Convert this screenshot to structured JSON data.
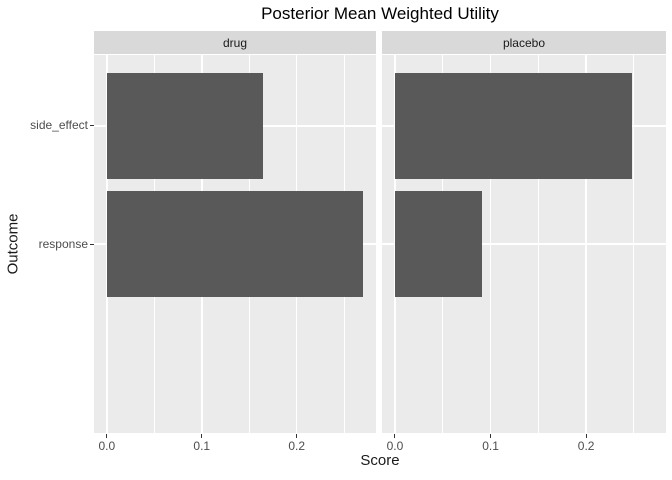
{
  "chart_data": {
    "type": "bar",
    "orientation": "horizontal",
    "title": "Posterior Mean Weighted Utility",
    "xlabel": "Score",
    "ylabel": "Outcome",
    "categories": [
      "side_effect",
      "response"
    ],
    "facets": [
      {
        "label": "drug",
        "values": [
          0.165,
          0.27
        ]
      },
      {
        "label": "placebo",
        "values": [
          0.248,
          0.091
        ]
      }
    ],
    "x_ticks": [
      0,
      0.1,
      0.2
    ],
    "x_tick_labels": [
      "0.0",
      "0.1",
      "0.2"
    ],
    "x_minor_ticks": [
      0.05,
      0.15,
      0.25
    ],
    "xlim": [
      -0.0135,
      0.2835
    ],
    "grid": true,
    "legend": "none",
    "colors": {
      "bar": "#595959",
      "panel_bg": "#EBEBEB",
      "strip_bg": "#D9D9D9",
      "grid": "#FFFFFF",
      "tick": "#333333",
      "tick_label": "#4D4D4D",
      "text": "#1A1A1A"
    }
  }
}
